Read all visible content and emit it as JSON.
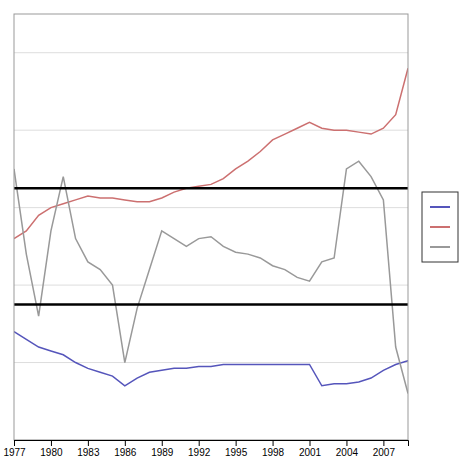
{
  "chart_data": {
    "type": "line",
    "x": [
      1977,
      1978,
      1979,
      1980,
      1981,
      1982,
      1983,
      1984,
      1985,
      1986,
      1987,
      1988,
      1989,
      1990,
      1991,
      1992,
      1993,
      1994,
      1995,
      1996,
      1997,
      1998,
      1999,
      2000,
      2001,
      2002,
      2003,
      2004,
      2005,
      2006,
      2007,
      2008,
      2009
    ],
    "series": [
      {
        "color": "#5555bb",
        "values": [
          0.28,
          0.26,
          0.24,
          0.23,
          0.22,
          0.2,
          0.185,
          0.175,
          0.165,
          0.14,
          0.16,
          0.175,
          0.18,
          0.185,
          0.185,
          0.19,
          0.19,
          0.195,
          0.195,
          0.195,
          0.195,
          0.195,
          0.195,
          0.195,
          0.195,
          0.14,
          0.145,
          0.145,
          0.15,
          0.16,
          0.18,
          0.195,
          0.205
        ]
      },
      {
        "color": "#cc7070",
        "values": [
          0.52,
          0.54,
          0.58,
          0.6,
          0.61,
          0.62,
          0.63,
          0.625,
          0.625,
          0.62,
          0.615,
          0.615,
          0.625,
          0.64,
          0.65,
          0.655,
          0.66,
          0.675,
          0.7,
          0.72,
          0.745,
          0.775,
          0.79,
          0.805,
          0.82,
          0.805,
          0.8,
          0.8,
          0.795,
          0.79,
          0.805,
          0.84,
          0.96
        ]
      },
      {
        "color": "#999999",
        "values": [
          0.7,
          0.48,
          0.32,
          0.54,
          0.68,
          0.52,
          0.46,
          0.44,
          0.4,
          0.2,
          0.34,
          0.44,
          0.54,
          0.52,
          0.5,
          0.52,
          0.525,
          0.5,
          0.485,
          0.48,
          0.47,
          0.45,
          0.44,
          0.42,
          0.41,
          0.46,
          0.47,
          0.7,
          0.72,
          0.68,
          0.62,
          0.24,
          0.12
        ]
      }
    ],
    "reference_lines": [
      {
        "value": 0.65,
        "color": "#000000"
      },
      {
        "value": 0.35,
        "color": "#000000"
      }
    ],
    "xlim": [
      1977,
      2009
    ],
    "ylim": [
      0.0,
      1.1
    ],
    "xticks": [
      1977,
      1980,
      1983,
      1986,
      1989,
      1992,
      1995,
      1998,
      2001,
      2004,
      2007
    ],
    "yticks": [
      0,
      0.2,
      0.4,
      0.6,
      0.8,
      1.0
    ],
    "tick_labels": "x",
    "grid": "y",
    "legend": "right"
  }
}
